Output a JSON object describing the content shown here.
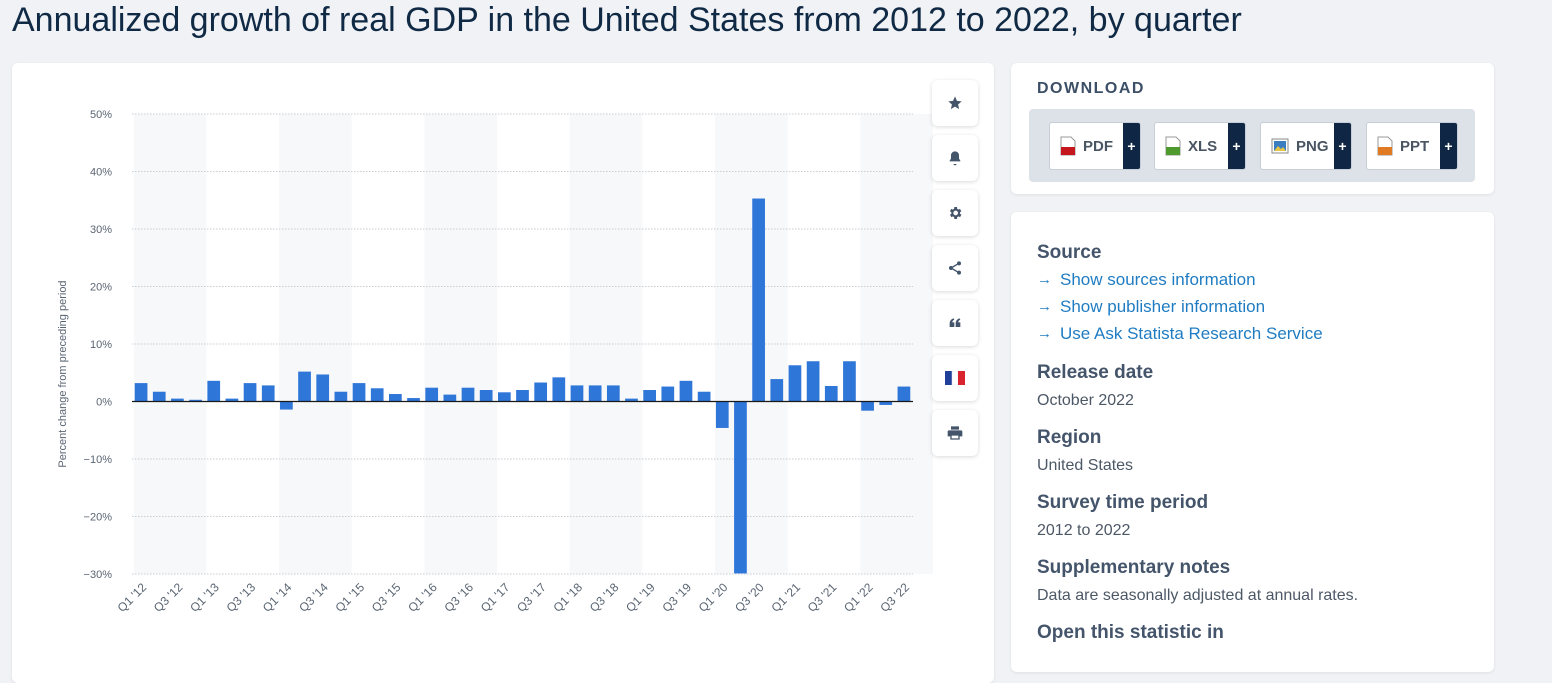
{
  "page": {
    "title": "Annualized growth of real GDP in the United States from 2012 to 2022, by quarter"
  },
  "toolbar": {
    "buttons": [
      {
        "name": "favorite",
        "icon": "star-icon"
      },
      {
        "name": "notification",
        "icon": "bell-icon"
      },
      {
        "name": "settings",
        "icon": "gear-icon"
      },
      {
        "name": "share",
        "icon": "share-icon"
      },
      {
        "name": "cite",
        "icon": "quote-icon"
      },
      {
        "name": "language",
        "icon": "french-flag-icon"
      },
      {
        "name": "print",
        "icon": "printer-icon"
      }
    ]
  },
  "download": {
    "heading": "DOWNLOAD",
    "buttons": [
      {
        "label": "PDF",
        "plus": "+",
        "icon_color": "#c4161c"
      },
      {
        "label": "XLS",
        "plus": "+",
        "icon_color": "#4f9a2f"
      },
      {
        "label": "PNG",
        "plus": "+",
        "icon_color": "#3a7dc0"
      },
      {
        "label": "PPT",
        "plus": "+",
        "icon_color": "#e07b24"
      }
    ]
  },
  "info": {
    "source_heading": "Source",
    "links": [
      "Show sources information",
      "Show publisher information",
      "Use Ask Statista Research Service"
    ],
    "release_heading": "Release date",
    "release_value": "October 2022",
    "region_heading": "Region",
    "region_value": "United States",
    "survey_heading": "Survey time period",
    "survey_value": "2012 to 2022",
    "notes_heading": "Supplementary notes",
    "notes_value": "Data are seasonally adjusted at annual rates.",
    "open_heading": "Open this statistic in"
  },
  "colors": {
    "bar": "#2f76d9",
    "grid": "#c9cdd3",
    "band": "#f7f8f9",
    "text": "#5a6573"
  },
  "chart_data": {
    "type": "bar",
    "title": "Annualized growth of real GDP in the United States from 2012 to 2022, by quarter",
    "xlabel": "",
    "ylabel": "Percent change from preceding period",
    "ylim": [
      -30,
      50
    ],
    "yticks": [
      50,
      40,
      30,
      20,
      10,
      0,
      -10,
      -20,
      -30
    ],
    "ytick_labels": [
      "50%",
      "40%",
      "30%",
      "20%",
      "10%",
      "0%",
      "−10%",
      "−20%",
      "−30%"
    ],
    "grid": true,
    "categories": [
      "Q1 '12",
      "Q2 '12",
      "Q3 '12",
      "Q4 '12",
      "Q1 '13",
      "Q2 '13",
      "Q3 '13",
      "Q4 '13",
      "Q1 '14",
      "Q2 '14",
      "Q3 '14",
      "Q4 '14",
      "Q1 '15",
      "Q2 '15",
      "Q3 '15",
      "Q4 '15",
      "Q1 '16",
      "Q2 '16",
      "Q3 '16",
      "Q4 '16",
      "Q1 '17",
      "Q2 '17",
      "Q3 '17",
      "Q4 '17",
      "Q1 '18",
      "Q2 '18",
      "Q3 '18",
      "Q4 '18",
      "Q1 '19",
      "Q2 '19",
      "Q3 '19",
      "Q4 '19",
      "Q1 '20",
      "Q2 '20",
      "Q3 '20",
      "Q4 '20",
      "Q1 '21",
      "Q2 '21",
      "Q3 '21",
      "Q4 '21",
      "Q1 '22",
      "Q2 '22",
      "Q3 '22"
    ],
    "xtick_labels": [
      "Q1 '12",
      "Q3 '12",
      "Q1 '13",
      "Q3 '13",
      "Q1 '14",
      "Q3 '14",
      "Q1 '15",
      "Q3 '15",
      "Q1 '16",
      "Q3 '16",
      "Q1 '17",
      "Q3 '17",
      "Q1 '18",
      "Q3 '18",
      "Q1 '19",
      "Q3 '19",
      "Q1 '20",
      "Q3 '20",
      "Q1 '21",
      "Q3 '21",
      "Q1 '22",
      "Q3 '22"
    ],
    "values": [
      3.2,
      1.7,
      0.5,
      0.3,
      3.6,
      0.5,
      3.2,
      2.8,
      -1.4,
      5.2,
      4.7,
      1.7,
      3.2,
      2.3,
      1.3,
      0.6,
      2.4,
      1.2,
      2.4,
      2.0,
      1.6,
      2.0,
      3.3,
      4.2,
      2.8,
      2.8,
      2.8,
      0.5,
      2.0,
      2.6,
      3.6,
      1.7,
      -4.6,
      -29.9,
      35.3,
      3.9,
      6.3,
      7.0,
      2.7,
      7.0,
      -1.6,
      -0.6,
      2.6
    ]
  }
}
